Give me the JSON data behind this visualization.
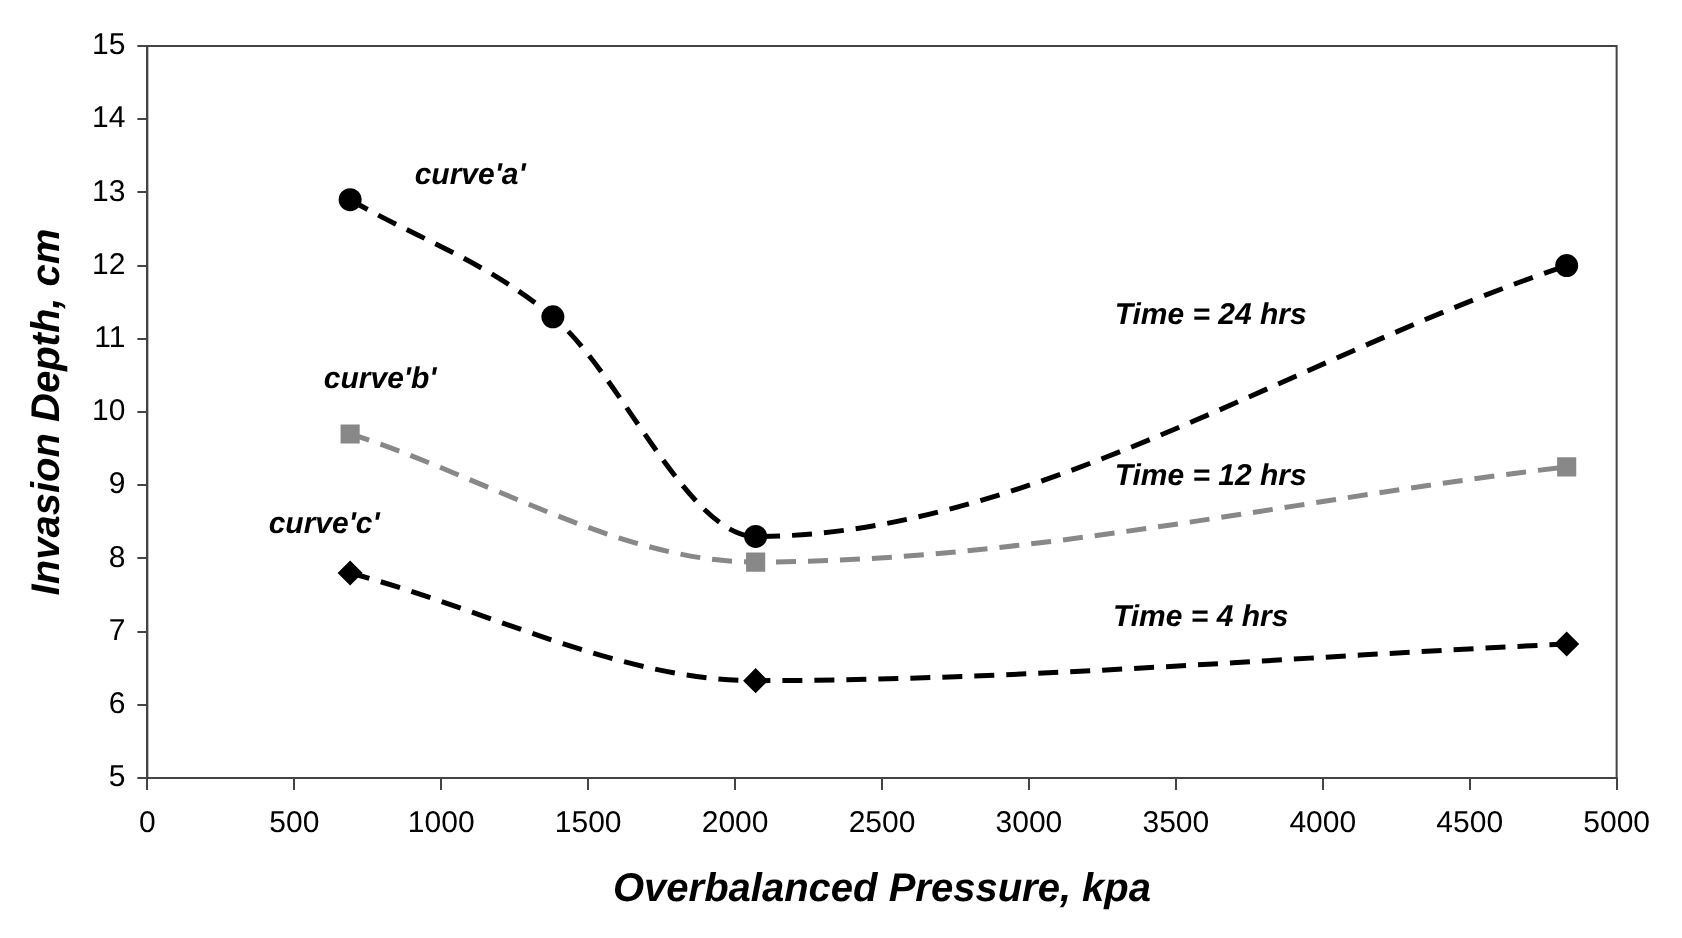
{
  "chart_data": {
    "type": "line",
    "xlabel": "Overbalanced Pressure, kpa",
    "ylabel": "Invasion Depth, cm",
    "xlim": [
      0,
      5000
    ],
    "xticks": [
      0,
      500,
      1000,
      1500,
      2000,
      2500,
      3000,
      3500,
      4000,
      4500,
      5000
    ],
    "ylim": [
      5,
      15
    ],
    "yticks": [
      5,
      6,
      7,
      8,
      9,
      10,
      11,
      12,
      13,
      14,
      15
    ],
    "grid": false,
    "legend": false,
    "line_style": "dashed",
    "series": [
      {
        "color": "#000000",
        "marker": "circle",
        "x": [
          690,
          1380,
          2070,
          4830
        ],
        "values": [
          12.9,
          11.3,
          8.3,
          12.0
        ]
      },
      {
        "color": "#888888",
        "marker": "square",
        "x": [
          690,
          2070,
          4830
        ],
        "values": [
          9.7,
          7.95,
          9.25
        ]
      },
      {
        "color": "#000000",
        "marker": "diamond",
        "x": [
          690,
          2070,
          4830
        ],
        "values": [
          7.8,
          6.33,
          6.83
        ]
      }
    ],
    "annotations": [
      "curve'a'",
      "curve'b'",
      "curve'c'",
      "Time = 24 hrs",
      "Time = 12 hrs",
      "Time = 4 hrs"
    ]
  }
}
